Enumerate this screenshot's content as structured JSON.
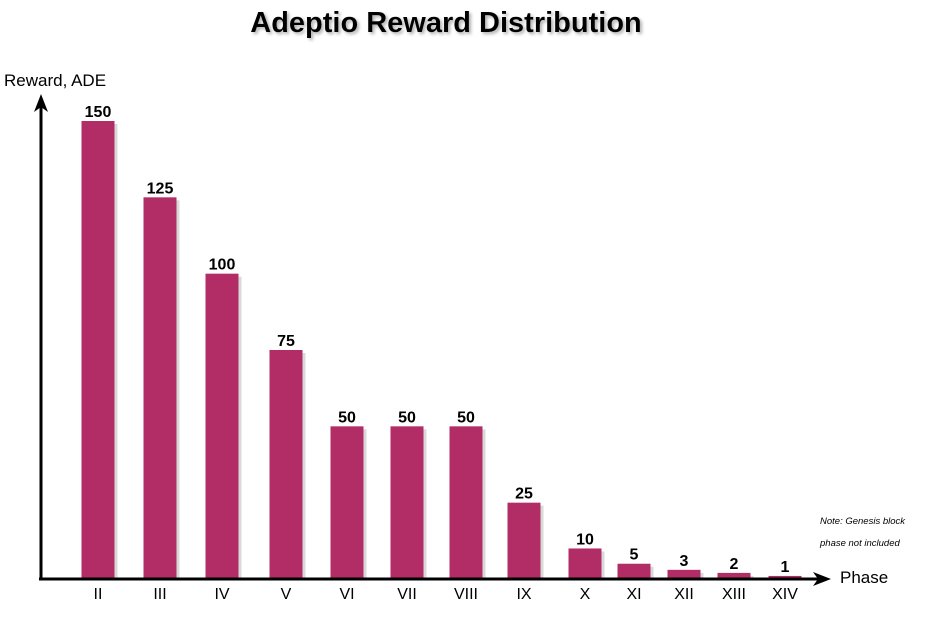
{
  "chart_data": {
    "type": "bar",
    "title": "Adeptio Reward Distribution",
    "xlabel": "Phase",
    "ylabel": "Reward, ADE",
    "categories": [
      "II",
      "III",
      "IV",
      "V",
      "VI",
      "VII",
      "VIII",
      "IX",
      "X",
      "XI",
      "XII",
      "XIII",
      "XIV"
    ],
    "values": [
      150,
      125,
      100,
      75,
      50,
      50,
      50,
      25,
      10,
      5,
      3,
      2,
      1
    ],
    "data_labels": [
      "150",
      "125",
      "100",
      "75",
      "50",
      "50",
      "50",
      "25",
      "10",
      "5",
      "3",
      "2",
      "1"
    ],
    "ylim": [
      0,
      160
    ],
    "grid": false,
    "legend": "none",
    "annotations": [
      "Note: Genesis block",
      "phase not included"
    ],
    "colors": {
      "bar": "#b22d66",
      "bar_shadow": "#d9d9d9",
      "axis": "#000000"
    }
  }
}
